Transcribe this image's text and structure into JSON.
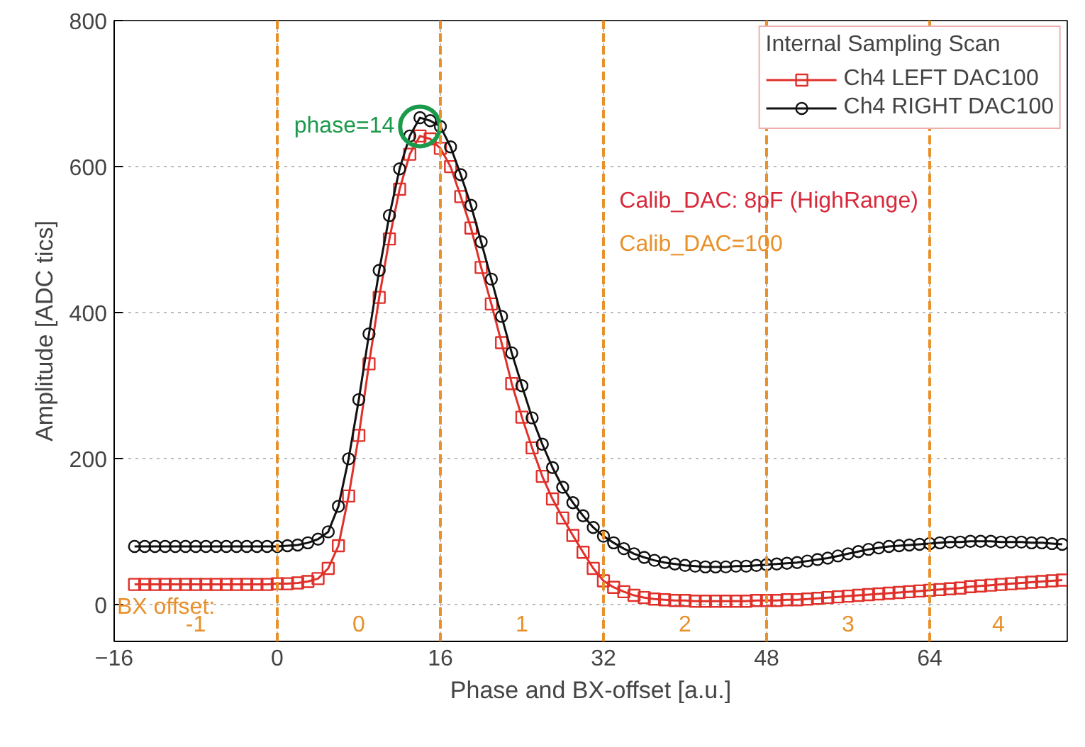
{
  "chart_data": {
    "type": "line",
    "xlabel": "Phase and BX-offset [a.u.]",
    "ylabel": "Amplitude [ADC tics]",
    "legend_title": "Internal Sampling Scan",
    "x": [
      -14,
      -13,
      -12,
      -11,
      -10,
      -9,
      -8,
      -7,
      -6,
      -5,
      -4,
      -3,
      -2,
      -1,
      0,
      1,
      2,
      3,
      4,
      5,
      6,
      7,
      8,
      9,
      10,
      11,
      12,
      13,
      14,
      15,
      16,
      17,
      18,
      19,
      20,
      21,
      22,
      23,
      24,
      25,
      26,
      27,
      28,
      29,
      30,
      31,
      32,
      33,
      34,
      35,
      36,
      37,
      38,
      39,
      40,
      41,
      42,
      43,
      44,
      45,
      46,
      47,
      48,
      49,
      50,
      51,
      52,
      53,
      54,
      55,
      56,
      57,
      58,
      59,
      60,
      61,
      62,
      63,
      64,
      65,
      66,
      67,
      68,
      69,
      70,
      71,
      72,
      73,
      74,
      75,
      76,
      77
    ],
    "series": [
      {
        "name": "Ch4 LEFT DAC100",
        "color": "#e0302a",
        "marker": "square",
        "values": [
          28,
          28,
          28,
          28,
          28,
          28,
          28,
          28,
          28,
          28,
          28,
          28,
          28,
          28,
          29,
          29,
          30,
          32,
          36,
          50,
          81,
          149,
          232,
          330,
          421,
          501,
          569,
          617,
          642,
          638,
          625,
          600,
          559,
          516,
          462,
          412,
          359,
          303,
          257,
          215,
          176,
          145,
          119,
          95,
          72,
          50,
          33,
          24,
          18,
          13,
          10,
          8,
          7,
          6,
          6,
          5,
          5,
          5,
          5,
          5,
          5,
          6,
          6,
          6,
          7,
          7,
          8,
          9,
          10,
          11,
          12,
          13,
          14,
          15,
          16,
          17,
          18,
          19,
          20,
          21,
          22,
          23,
          25,
          26,
          27,
          28,
          29,
          30,
          31,
          32,
          33,
          34
        ]
      },
      {
        "name": "Ch4 RIGHT DAC100",
        "color": "#111111",
        "marker": "circle",
        "values": [
          80,
          80,
          80,
          80,
          80,
          80,
          80,
          80,
          80,
          80,
          80,
          80,
          80,
          80,
          80,
          81,
          82,
          85,
          90,
          100,
          135,
          200,
          281,
          371,
          458,
          533,
          597,
          642,
          667,
          663,
          655,
          627,
          589,
          547,
          497,
          446,
          395,
          345,
          300,
          256,
          220,
          188,
          161,
          140,
          122,
          106,
          94,
          85,
          77,
          70,
          65,
          61,
          58,
          56,
          54,
          53,
          52,
          52,
          52,
          53,
          53,
          54,
          55,
          56,
          57,
          58,
          60,
          62,
          64,
          67,
          70,
          73,
          76,
          78,
          80,
          81,
          82,
          83,
          84,
          85,
          86,
          86,
          87,
          87,
          87,
          86,
          86,
          86,
          85,
          85,
          84,
          83
        ]
      }
    ],
    "xlim": [
      -16,
      77.5
    ],
    "ylim": [
      -50,
      800
    ],
    "xticks": [
      -16,
      0,
      16,
      32,
      48,
      64
    ],
    "yticks": [
      0,
      200,
      400,
      600,
      800
    ],
    "grid": true,
    "legend": "top right",
    "line_style": "solid",
    "ref_lines": [
      {
        "axis": "x",
        "value": 0,
        "color": "#e8902a",
        "line_style": "dashed"
      },
      {
        "axis": "x",
        "value": 16,
        "color": "#e8902a",
        "line_style": "dashed"
      },
      {
        "axis": "x",
        "value": 32,
        "color": "#e8902a",
        "line_style": "dashed"
      },
      {
        "axis": "x",
        "value": 48,
        "color": "#e8902a",
        "line_style": "dashed"
      },
      {
        "axis": "x",
        "value": 64,
        "color": "#e8902a",
        "line_style": "dashed"
      }
    ],
    "annotations": [
      "Calib_DAC: 8pF (HighRange)",
      "Calib_DAC=100",
      {
        "text": "phase=14",
        "x": 14,
        "y": 655
      },
      "BX offset:",
      "-1",
      "0",
      "1",
      "2",
      "3",
      "4"
    ]
  }
}
